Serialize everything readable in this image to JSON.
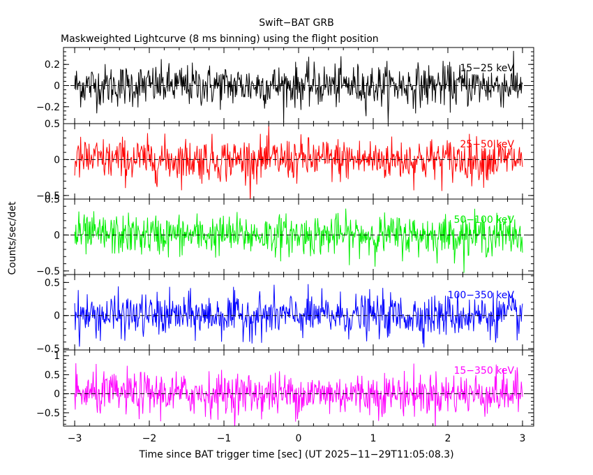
{
  "title": "Swift−BAT GRB",
  "subtitle": "Maskweighted Lightcurve (8 ms binning) using the flight position",
  "xlabel": "Time since BAT trigger time [sec] (UT 2025−11−29T11:05:08.3)",
  "ylabel": "Counts/sec/det",
  "chart_data": {
    "type": "line",
    "title": "Swift−BAT GRB",
    "subtitle": "Maskweighted Lightcurve (8 ms binning) using the flight position",
    "xlabel": "Time since BAT trigger time [sec] (UT 2025−11−29T11:05:08.3)",
    "ylabel": "Counts/sec/det",
    "xlim": [
      -3.15,
      3.15
    ],
    "x_ticks": [
      -3,
      -2,
      -1,
      0,
      1,
      2,
      3
    ],
    "x_tick_labels": [
      "−3",
      "−2",
      "−1",
      "0",
      "1",
      "2",
      "3"
    ],
    "bin_width_sec": 0.008,
    "x_start": -3.0,
    "x_end": 3.0,
    "zero_line": "dashed",
    "panels": [
      {
        "band": "15−25 keV",
        "color": "#000000",
        "ylim": [
          -0.36,
          0.36
        ],
        "yticks": [
          -0.2,
          0,
          0.2
        ],
        "ytick_labels": [
          "−0.2",
          "0",
          "0.2"
        ],
        "noise_sigma": 0.1,
        "mean": 0
      },
      {
        "band": "25−50 keV",
        "color": "#ff0000",
        "ylim": [
          -0.55,
          0.5
        ],
        "yticks": [
          -0.5,
          0,
          0.5
        ],
        "ytick_labels": [
          "−0.5",
          "0",
          "0.5"
        ],
        "noise_sigma": 0.15,
        "mean": 0
      },
      {
        "band": "50−100 keV",
        "color": "#00ee00",
        "ylim": [
          -0.55,
          0.5
        ],
        "yticks": [
          -0.5,
          0,
          0.5
        ],
        "ytick_labels": [
          "−0.5",
          "0",
          "0.5"
        ],
        "noise_sigma": 0.14,
        "mean": 0
      },
      {
        "band": "100−350 keV",
        "color": "#0000ff",
        "ylim": [
          -0.52,
          0.62
        ],
        "yticks": [
          -0.5,
          0,
          0.5
        ],
        "ytick_labels": [
          "−0.5",
          "0",
          "0.5"
        ],
        "noise_sigma": 0.16,
        "mean": 0
      },
      {
        "band": "15−350 keV",
        "color": "#ff00ff",
        "ylim": [
          -0.85,
          1.15
        ],
        "yticks": [
          -0.5,
          0,
          0.5,
          1
        ],
        "ytick_labels": [
          "−0.5",
          "0",
          "0.5",
          "1"
        ],
        "noise_sigma": 0.28,
        "mean": 0
      }
    ]
  }
}
